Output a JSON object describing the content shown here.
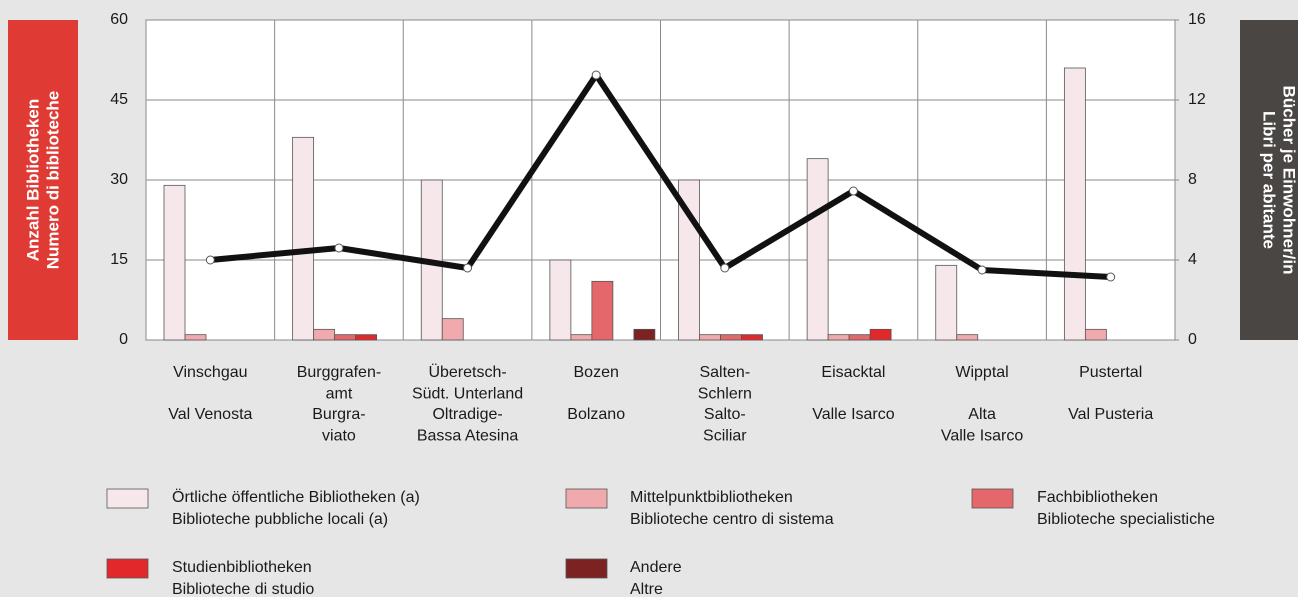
{
  "chart_data": {
    "type": "bar",
    "y_label": [
      "Anzahl Bibliotheken",
      "Numero di biblioteche"
    ],
    "y2_label": [
      "Bücher je Einwohner/in",
      "Libri per abitante"
    ],
    "categories": [
      {
        "de": [
          "Vinschgau"
        ],
        "it": [
          "Val Venosta"
        ]
      },
      {
        "de": [
          "Burggrafen-",
          "amt"
        ],
        "it": [
          "Burgra-",
          "viato"
        ]
      },
      {
        "de": [
          "Überetsch-",
          "Südt. Unterland"
        ],
        "it": [
          "Oltradige-",
          "Bassa Atesina"
        ]
      },
      {
        "de": [
          "Bozen"
        ],
        "it": [
          "Bolzano"
        ]
      },
      {
        "de": [
          "Salten-",
          "Schlern"
        ],
        "it": [
          "Salto-",
          "Sciliar"
        ]
      },
      {
        "de": [
          "Eisacktal"
        ],
        "it": [
          "Valle Isarco"
        ]
      },
      {
        "de": [
          "Wipptal"
        ],
        "it": [
          "Alta",
          "Valle Isarco"
        ]
      },
      {
        "de": [
          "Pustertal"
        ],
        "it": [
          "Val Pusteria"
        ]
      }
    ],
    "series": [
      {
        "name": [
          "Örtliche öffentliche Bibliotheken (a)",
          "Biblioteche pubbliche locali (a)"
        ],
        "color": "#f6e8ea",
        "values": [
          29,
          38,
          30,
          15,
          30,
          34,
          14,
          51
        ]
      },
      {
        "name": [
          "Mittelpunktbibliotheken",
          "Biblioteche centro di sistema"
        ],
        "color": "#f0a9ac",
        "values": [
          1,
          2,
          4,
          1,
          1,
          1,
          1,
          2
        ]
      },
      {
        "name": [
          "Fachbibliotheken",
          "Biblioteche specialistiche"
        ],
        "color": "#e4686b",
        "values": [
          0,
          1,
          0,
          11,
          1,
          1,
          0,
          0
        ]
      },
      {
        "name": [
          "Studienbibliotheken",
          "Biblioteche di studio"
        ],
        "color": "#e3282c",
        "values": [
          0,
          1,
          0,
          0,
          1,
          2,
          0,
          0
        ]
      },
      {
        "name": [
          "Andere",
          "Altre"
        ],
        "color": "#7d2222",
        "values": [
          0,
          0,
          0,
          2,
          0,
          0,
          0,
          0
        ]
      },
      {
        "type": "line",
        "axis": "y2",
        "color": "#111111",
        "values": [
          4.0,
          4.6,
          3.6,
          13.25,
          3.6,
          7.45,
          3.5,
          3.15
        ]
      }
    ],
    "ylim": [
      0,
      60
    ],
    "yticks": [
      0,
      15,
      30,
      45,
      60
    ],
    "y2lim": [
      0,
      16
    ],
    "y2ticks": [
      0,
      4,
      8,
      12,
      16
    ],
    "grid": true
  }
}
